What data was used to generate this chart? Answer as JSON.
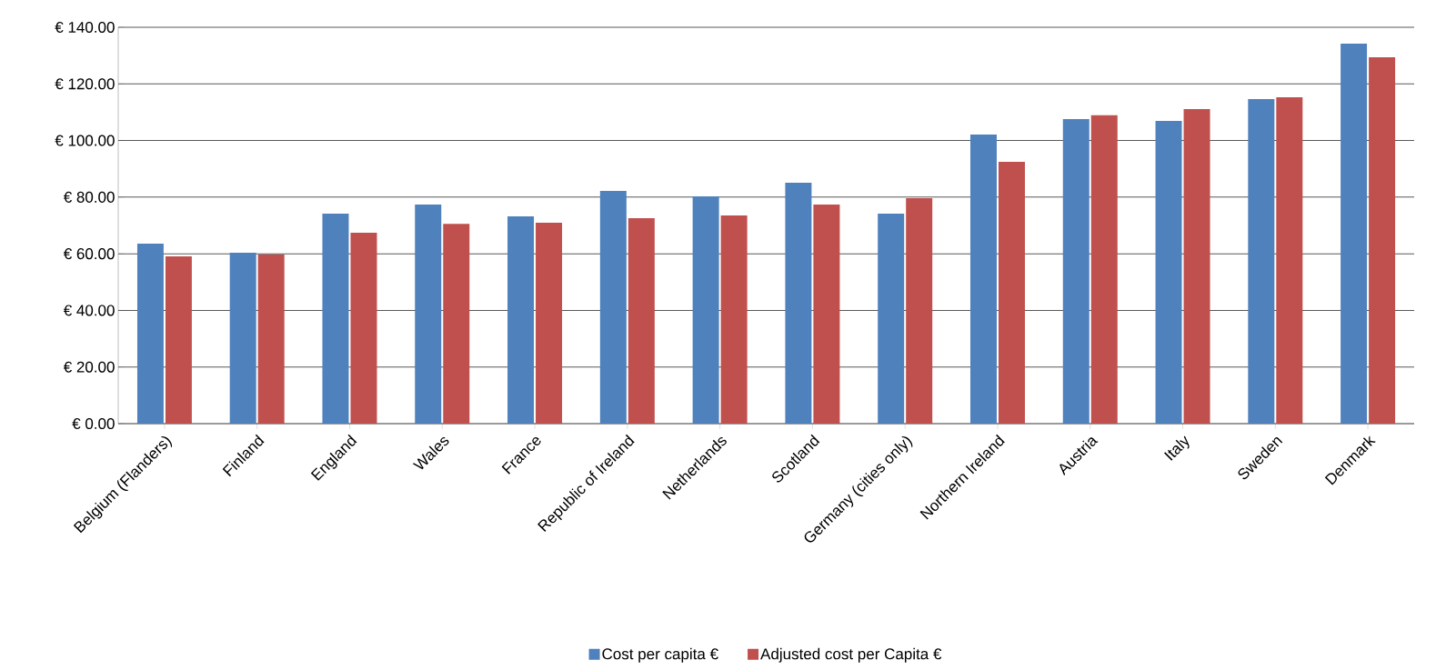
{
  "chart_data": {
    "type": "bar",
    "categories": [
      "Belgium (Flanders)",
      "Finland",
      "England",
      "Wales",
      "France",
      "Republic of Ireland",
      "Netherlands",
      "Scotland",
      "Germany (cities only)",
      "Northern Ireland",
      "Austria",
      "Italy",
      "Sweden",
      "Denmark"
    ],
    "series": [
      {
        "name": "Cost per capita €",
        "color": "#4f81bd",
        "values": [
          63.6,
          60.4,
          74.2,
          77.4,
          73.2,
          82.2,
          80.3,
          85.1,
          74.2,
          102.1,
          107.6,
          106.9,
          114.6,
          134.2
        ]
      },
      {
        "name": "Adjusted cost per Capita €",
        "color": "#c0504d",
        "values": [
          59.1,
          59.7,
          67.4,
          70.6,
          71.0,
          72.6,
          73.5,
          77.4,
          79.6,
          92.5,
          108.9,
          111.1,
          115.3,
          129.4
        ]
      }
    ],
    "ylim": [
      0,
      140
    ],
    "yticks": [
      {
        "value": 0,
        "label": "€ 0.00"
      },
      {
        "value": 20,
        "label": "€ 20.00"
      },
      {
        "value": 40,
        "label": "€ 40.00"
      },
      {
        "value": 60,
        "label": "€ 60.00"
      },
      {
        "value": 80,
        "label": "€ 80.00"
      },
      {
        "value": 100,
        "label": "€ 100.00"
      },
      {
        "value": 120,
        "label": "€ 120.00"
      },
      {
        "value": 140,
        "label": "€ 140.00"
      }
    ],
    "grid": "y",
    "legend": "bottom"
  }
}
